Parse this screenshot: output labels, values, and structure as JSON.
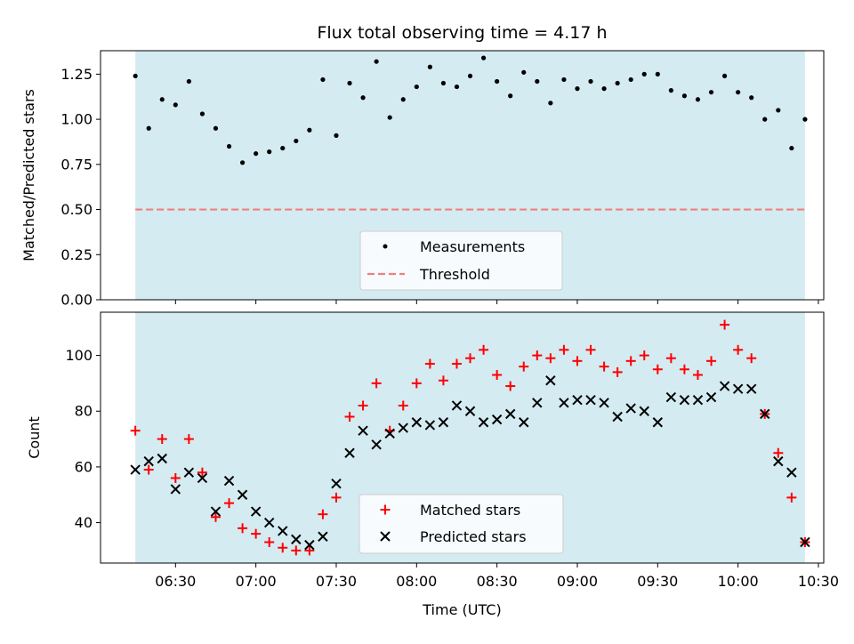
{
  "chart_data": [
    {
      "type": "scatter",
      "title": "Flux total observing time = 4.17 h",
      "ylabel": "Matched/Predicted stars",
      "ylim": [
        0,
        1.38
      ],
      "yticks": [
        "0.00",
        "0.25",
        "0.50",
        "0.75",
        "1.00",
        "1.25"
      ],
      "ytick_values": [
        0,
        0.25,
        0.5,
        0.75,
        1.0,
        1.25
      ],
      "shaded_span": [
        "06:15",
        "10:25"
      ],
      "grid": false,
      "legend_position": "bottom-center",
      "series": [
        {
          "name": "Measurements",
          "marker": "dot",
          "color": "#000000",
          "x": [
            "06:15",
            "06:20",
            "06:25",
            "06:30",
            "06:35",
            "06:40",
            "06:45",
            "06:50",
            "06:55",
            "07:00",
            "07:05",
            "07:10",
            "07:15",
            "07:20",
            "07:25",
            "07:30",
            "07:35",
            "07:40",
            "07:45",
            "07:50",
            "07:55",
            "08:00",
            "08:05",
            "08:10",
            "08:15",
            "08:20",
            "08:25",
            "08:30",
            "08:35",
            "08:40",
            "08:45",
            "08:50",
            "08:55",
            "09:00",
            "09:05",
            "09:10",
            "09:15",
            "09:20",
            "09:25",
            "09:30",
            "09:35",
            "09:40",
            "09:45",
            "09:50",
            "09:55",
            "10:00",
            "10:05",
            "10:10",
            "10:15",
            "10:20",
            "10:25"
          ],
          "y": [
            1.24,
            0.95,
            1.11,
            1.08,
            1.21,
            1.03,
            0.95,
            0.85,
            0.76,
            0.81,
            0.82,
            0.84,
            0.88,
            0.94,
            1.22,
            0.91,
            1.2,
            1.12,
            1.32,
            1.01,
            1.11,
            1.18,
            1.29,
            1.2,
            1.18,
            1.24,
            1.34,
            1.21,
            1.13,
            1.26,
            1.21,
            1.09,
            1.22,
            1.17,
            1.21,
            1.17,
            1.2,
            1.22,
            1.25,
            1.25,
            1.16,
            1.13,
            1.11,
            1.15,
            1.24,
            1.15,
            1.12,
            1.0,
            1.05,
            0.84,
            1.0
          ]
        },
        {
          "name": "Threshold",
          "type": "line",
          "style": "dashed",
          "color": "#f08080",
          "value": 0.5
        }
      ]
    },
    {
      "type": "scatter",
      "xlabel": "Time (UTC)",
      "ylabel": "Count",
      "ylim": [
        25.5,
        115.5
      ],
      "yticks": [
        "40",
        "60",
        "80",
        "100"
      ],
      "ytick_values": [
        40,
        60,
        80,
        100
      ],
      "xticks": [
        "06:30",
        "07:00",
        "07:30",
        "08:00",
        "08:30",
        "09:00",
        "09:30",
        "10:00",
        "10:30"
      ],
      "xlim": [
        "06:02",
        "10:32"
      ],
      "shaded_span": [
        "06:15",
        "10:25"
      ],
      "grid": false,
      "legend_position": "bottom-center",
      "x": [
        "06:15",
        "06:20",
        "06:25",
        "06:30",
        "06:35",
        "06:40",
        "06:45",
        "06:50",
        "06:55",
        "07:00",
        "07:05",
        "07:10",
        "07:15",
        "07:20",
        "07:25",
        "07:30",
        "07:35",
        "07:40",
        "07:45",
        "07:50",
        "07:55",
        "08:00",
        "08:05",
        "08:10",
        "08:15",
        "08:20",
        "08:25",
        "08:30",
        "08:35",
        "08:40",
        "08:45",
        "08:50",
        "08:55",
        "09:00",
        "09:05",
        "09:10",
        "09:15",
        "09:20",
        "09:25",
        "09:30",
        "09:35",
        "09:40",
        "09:45",
        "09:50",
        "09:55",
        "10:00",
        "10:05",
        "10:10",
        "10:15",
        "10:20",
        "10:25"
      ],
      "series": [
        {
          "name": "Matched stars",
          "marker": "plus",
          "color": "#ff0000",
          "values": [
            73,
            59,
            70,
            56,
            70,
            58,
            42,
            47,
            38,
            36,
            33,
            31,
            30,
            30,
            43,
            49,
            78,
            82,
            90,
            73,
            82,
            90,
            97,
            91,
            97,
            99,
            102,
            93,
            89,
            96,
            100,
            99,
            102,
            98,
            102,
            96,
            94,
            98,
            100,
            95,
            99,
            95,
            93,
            98,
            111,
            102,
            99,
            79,
            65,
            49,
            33
          ]
        },
        {
          "name": "Predicted stars",
          "marker": "x",
          "color": "#000000",
          "values": [
            59,
            62,
            63,
            52,
            58,
            56,
            44,
            55,
            50,
            44,
            40,
            37,
            34,
            32,
            35,
            54,
            65,
            73,
            68,
            72,
            74,
            76,
            75,
            76,
            82,
            80,
            76,
            77,
            79,
            76,
            83,
            91,
            83,
            84,
            84,
            83,
            78,
            81,
            80,
            76,
            85,
            84,
            84,
            85,
            89,
            88,
            88,
            79,
            62,
            58,
            33
          ]
        }
      ]
    }
  ]
}
